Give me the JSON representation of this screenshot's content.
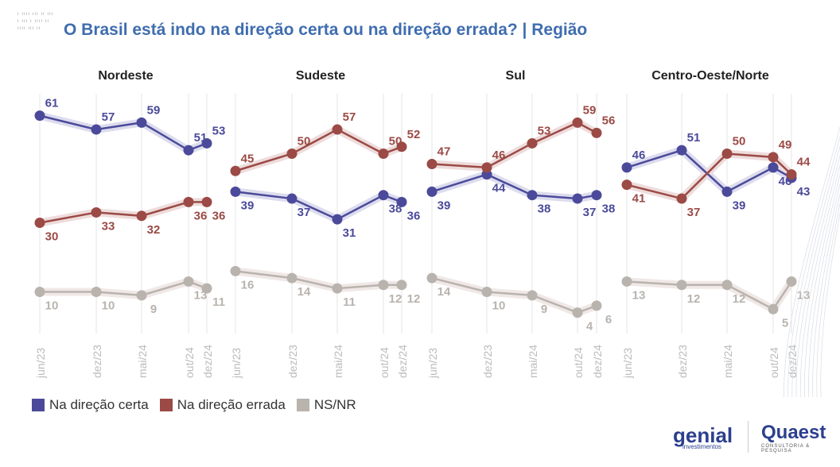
{
  "title": "O Brasil está indo na direção certa ou na direção errada? | Região",
  "logos": {
    "genial": "genial",
    "genial_sub": "investimentos",
    "quaest": "Quaest",
    "quaest_sub": "CONSULTORIA & PESQUISA"
  },
  "colors": {
    "certa": "#4b4a9a",
    "errada": "#9b4a45",
    "nsnr": "#b9b3ae",
    "title": "#3f6db0"
  },
  "chart_data": [
    {
      "type": "line",
      "title": "Nordeste",
      "categories": [
        "jun/23",
        "dez/23",
        "mai/24",
        "out/24",
        "dez/24"
      ],
      "ylim": [
        0,
        100
      ],
      "grid": "vertical",
      "series": [
        {
          "name": "Na direção certa",
          "values": [
            61,
            57,
            59,
            51,
            53
          ]
        },
        {
          "name": "Na direção errada",
          "values": [
            30,
            33,
            32,
            36,
            36
          ]
        },
        {
          "name": "NS/NR",
          "values": [
            10,
            10,
            9,
            13,
            11
          ]
        }
      ]
    },
    {
      "type": "line",
      "title": "Sudeste",
      "categories": [
        "jun/23",
        "dez/23",
        "mai/24",
        "out/24",
        "dez/24"
      ],
      "ylim": [
        0,
        100
      ],
      "grid": "vertical",
      "series": [
        {
          "name": "Na direção certa",
          "values": [
            39,
            37,
            31,
            38,
            36
          ]
        },
        {
          "name": "Na direção errada",
          "values": [
            45,
            50,
            57,
            50,
            52
          ]
        },
        {
          "name": "NS/NR",
          "values": [
            16,
            14,
            11,
            12,
            12
          ]
        }
      ]
    },
    {
      "type": "line",
      "title": "Sul",
      "categories": [
        "jun/23",
        "dez/23",
        "mai/24",
        "out/24",
        "dez/24"
      ],
      "ylim": [
        0,
        100
      ],
      "grid": "vertical",
      "series": [
        {
          "name": "Na direção certa",
          "values": [
            39,
            44,
            38,
            37,
            38
          ]
        },
        {
          "name": "Na direção errada",
          "values": [
            47,
            46,
            53,
            59,
            56
          ]
        },
        {
          "name": "NS/NR",
          "values": [
            14,
            10,
            9,
            4,
            6
          ]
        }
      ]
    },
    {
      "type": "line",
      "title": "Centro-Oeste/Norte",
      "categories": [
        "jun/23",
        "dez/23",
        "mai/24",
        "out/24",
        "dez/24"
      ],
      "ylim": [
        0,
        100
      ],
      "grid": "vertical",
      "series": [
        {
          "name": "Na direção certa",
          "values": [
            46,
            51,
            39,
            46,
            43
          ]
        },
        {
          "name": "Na direção errada",
          "values": [
            41,
            37,
            50,
            49,
            44
          ]
        },
        {
          "name": "NS/NR",
          "values": [
            13,
            12,
            12,
            5,
            13
          ]
        }
      ]
    }
  ],
  "legend": {
    "placement": "bottom-left",
    "items": [
      "Na direção certa",
      "Na direção errada",
      "NS/NR"
    ]
  }
}
